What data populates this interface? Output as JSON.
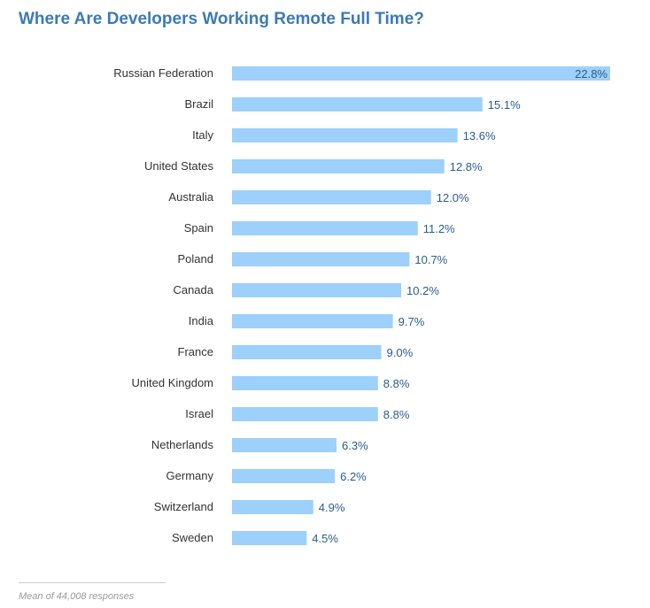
{
  "chart_data": {
    "type": "bar",
    "orientation": "horizontal",
    "title": "Where Are Developers Working Remote Full Time?",
    "categories": [
      "Russian Federation",
      "Brazil",
      "Italy",
      "United States",
      "Australia",
      "Spain",
      "Poland",
      "Canada",
      "India",
      "France",
      "United Kingdom",
      "Israel",
      "Netherlands",
      "Germany",
      "Switzerland",
      "Sweden"
    ],
    "values": [
      22.8,
      15.1,
      13.6,
      12.8,
      12.0,
      11.2,
      10.7,
      10.2,
      9.7,
      9.0,
      8.8,
      8.8,
      6.3,
      6.2,
      4.9,
      4.5
    ],
    "value_labels": [
      "22.8%",
      "15.1%",
      "13.6%",
      "12.8%",
      "12.0%",
      "11.2%",
      "10.7%",
      "10.2%",
      "9.7%",
      "9.0%",
      "8.8%",
      "8.8%",
      "6.3%",
      "6.2%",
      "4.9%",
      "4.5%"
    ],
    "xlabel": "",
    "ylabel": "",
    "xlim": [
      0,
      22.8
    ],
    "grid": false,
    "footnote": "Mean of 44,008 responses"
  },
  "colors": {
    "title": "#3b7ab8",
    "bar": "#9dd0fb",
    "value_label": "#2a5d8f",
    "category_label": "#333333"
  }
}
